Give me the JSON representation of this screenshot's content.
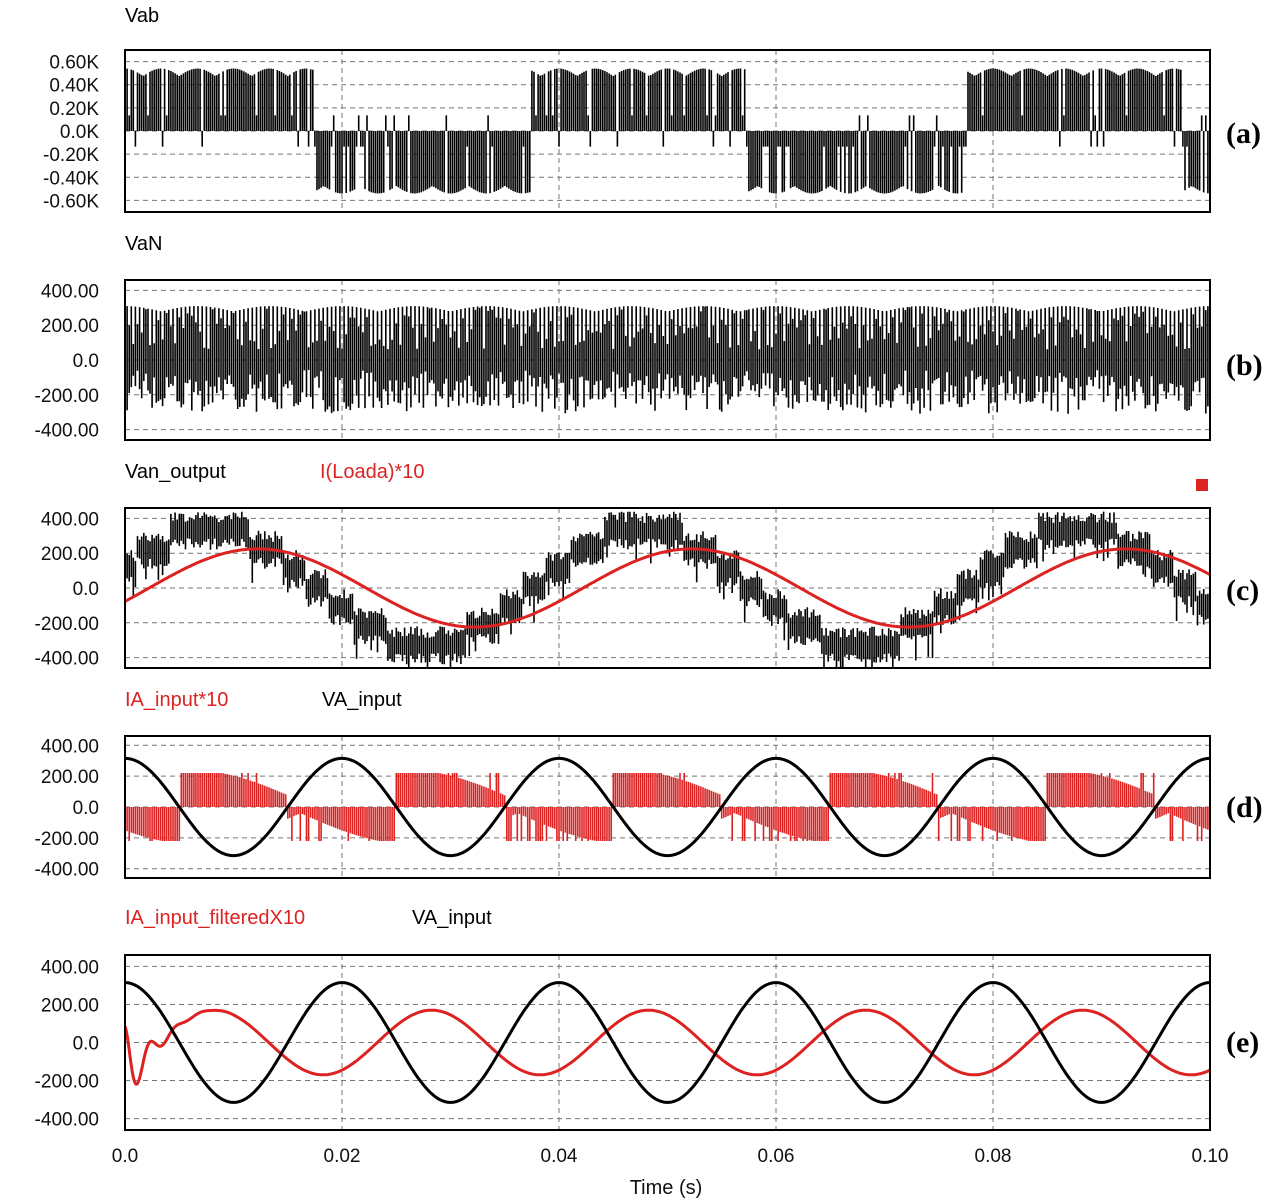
{
  "chart_data": {
    "type": "line",
    "xlabel": "Time (s)",
    "xlim": [
      0,
      0.1
    ],
    "x_ticks": [
      "0.0",
      "0.02",
      "0.04",
      "0.06",
      "0.08",
      "0.10"
    ],
    "x_grid": [
      0.02,
      0.04,
      0.06,
      0.08
    ],
    "panels": [
      {
        "tag": "(a)",
        "ylim": [
          -0.7,
          0.7
        ],
        "y_ticks": [
          {
            "label": "0.60K",
            "value": 0.6
          },
          {
            "label": "0.40K",
            "value": 0.4
          },
          {
            "label": "0.20K",
            "value": 0.2
          },
          {
            "label": "0.0K",
            "value": 0.0
          },
          {
            "label": "-0.20K",
            "value": -0.2
          },
          {
            "label": "-0.40K",
            "value": -0.4
          },
          {
            "label": "-0.60K",
            "value": -0.6
          }
        ],
        "series": [
          {
            "name": "Vab",
            "color": "#000000",
            "kind": "pwm-line",
            "amplitude": 0.54,
            "freq_hz": 25,
            "phase_deg": 0
          }
        ]
      },
      {
        "tag": "(b)",
        "ylim": [
          -460,
          460
        ],
        "y_ticks": [
          {
            "label": "400.00",
            "value": 400
          },
          {
            "label": "200.00",
            "value": 200
          },
          {
            "label": "0.0",
            "value": 0
          },
          {
            "label": "-200.00",
            "value": -200
          },
          {
            "label": "-400.00",
            "value": -400
          }
        ],
        "series": [
          {
            "name": "VaN",
            "color": "#000000",
            "kind": "pwm-phase",
            "amplitude": 310,
            "ripple_hz": 150
          }
        ]
      },
      {
        "tag": "(c)",
        "ylim": [
          -460,
          460
        ],
        "y_ticks": [
          {
            "label": "400.00",
            "value": 400
          },
          {
            "label": "200.00",
            "value": 200
          },
          {
            "label": "0.0",
            "value": 0
          },
          {
            "label": "-200.00",
            "value": -200
          },
          {
            "label": "-400.00",
            "value": -400
          }
        ],
        "series": [
          {
            "name": "Van_output",
            "color": "#000000",
            "kind": "pwm-level",
            "amplitude": 330,
            "freq_hz": 25,
            "phase_deg": 0
          },
          {
            "name": "I(Loada)*10",
            "color": "#dd2222",
            "kind": "sine",
            "amplitude": 225,
            "freq_hz": 25,
            "phase_deg": -20
          }
        ]
      },
      {
        "tag": "(d)",
        "ylim": [
          -460,
          460
        ],
        "y_ticks": [
          {
            "label": "400.00",
            "value": 400
          },
          {
            "label": "200.00",
            "value": 200
          },
          {
            "label": "0.0",
            "value": 0
          },
          {
            "label": "-200.00",
            "value": -200
          },
          {
            "label": "-400.00",
            "value": -400
          }
        ],
        "series": [
          {
            "name": "IA_input*10",
            "color": "#dd2222",
            "kind": "pwm-current",
            "amplitude": 220,
            "freq_hz": 50
          },
          {
            "name": "VA_input",
            "color": "#000000",
            "kind": "cosine",
            "amplitude": 315,
            "freq_hz": 50
          }
        ]
      },
      {
        "tag": "(e)",
        "ylim": [
          -460,
          460
        ],
        "y_ticks": [
          {
            "label": "400.00",
            "value": 400
          },
          {
            "label": "200.00",
            "value": 200
          },
          {
            "label": "0.0",
            "value": 0
          },
          {
            "label": "-200.00",
            "value": -200
          },
          {
            "label": "-400.00",
            "value": -400
          }
        ],
        "series": [
          {
            "name": "IA_input_filteredX10",
            "color": "#dd2222",
            "kind": "filtered",
            "amplitude": 170,
            "freq_hz": 50
          },
          {
            "name": "VA_input",
            "color": "#000000",
            "kind": "cosine",
            "amplitude": 315,
            "freq_hz": 50
          }
        ]
      }
    ]
  }
}
